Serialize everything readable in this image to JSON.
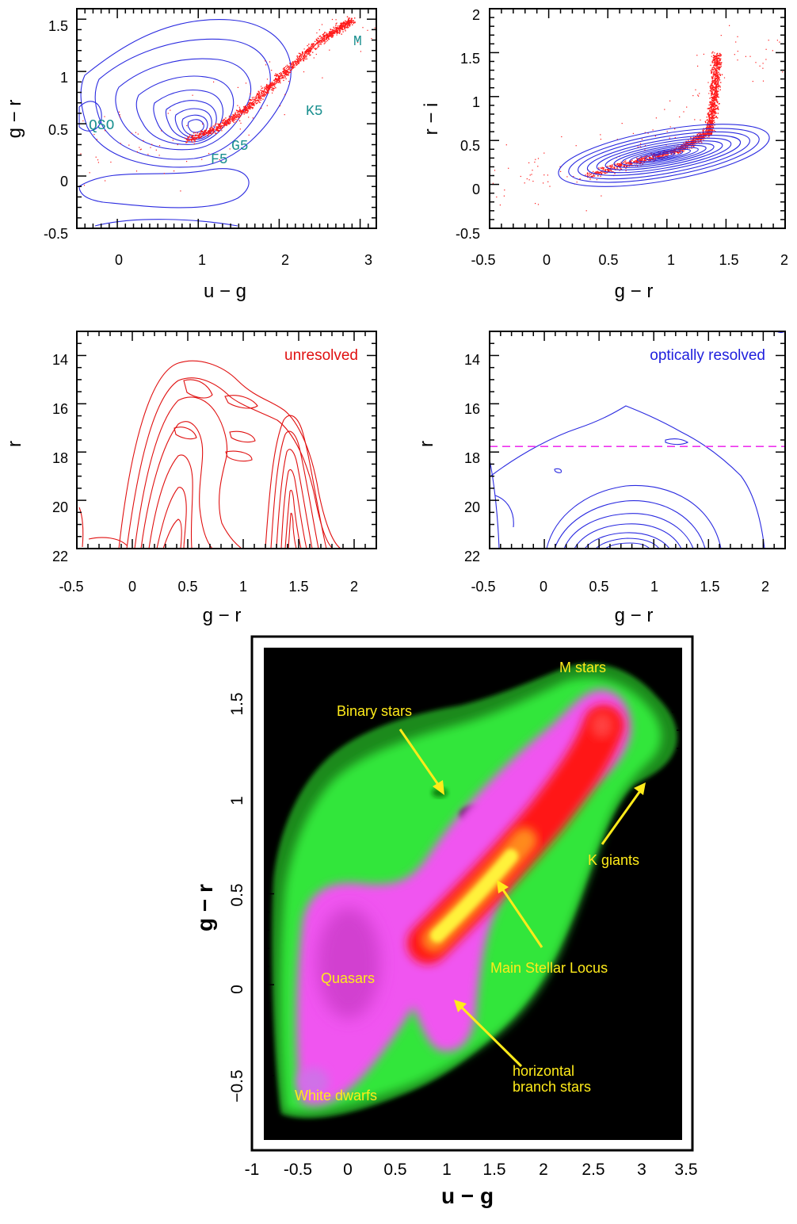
{
  "chart_data": [
    {
      "type": "scatter",
      "panel": "top-left",
      "xlabel": "u − g",
      "ylabel": "g − r",
      "xlim": [
        -0.5,
        3.2
      ],
      "ylim": [
        -0.5,
        1.6
      ],
      "xticks": [
        "0",
        "1",
        "2",
        "3"
      ],
      "yticks": [
        "-0.5",
        "0",
        "0.5",
        "1",
        "1.5"
      ],
      "series": [
        {
          "name": "",
          "kind": "contours",
          "color": "#2a2ae0",
          "center": [
            0.95,
            0.48
          ]
        },
        {
          "name": "",
          "kind": "points",
          "color": "#ff1a1a",
          "locus": [
            [
              0.85,
              0.35
            ],
            [
              1.2,
              0.45
            ],
            [
              1.6,
              0.65
            ],
            [
              2.0,
              0.95
            ],
            [
              2.5,
              1.3
            ],
            [
              2.9,
              1.5
            ]
          ]
        }
      ],
      "labels": [
        {
          "text": "QSO",
          "x": -0.1,
          "y": 0.5
        },
        {
          "text": "F5",
          "x": 1.18,
          "y": 0.2
        },
        {
          "text": "G5",
          "x": 1.5,
          "y": 0.33
        },
        {
          "text": "K5",
          "x": 2.35,
          "y": 0.68
        },
        {
          "text": "M",
          "x": 2.95,
          "y": 1.35
        }
      ]
    },
    {
      "type": "scatter",
      "panel": "top-right",
      "xlabel": "g − r",
      "ylabel": "r − i",
      "xlim": [
        -0.5,
        2.0
      ],
      "ylim": [
        -0.5,
        2.0
      ],
      "xticks": [
        "-0.5",
        "0",
        "0.5",
        "1",
        "1.5",
        "2"
      ],
      "yticks": [
        "-0.5",
        "0",
        "0.5",
        "1",
        "1.5",
        "2"
      ],
      "series": [
        {
          "name": "",
          "kind": "contours",
          "color": "#2a2ae0",
          "center": [
            0.9,
            0.35
          ]
        },
        {
          "name": "",
          "kind": "points",
          "color": "#ff1a1a",
          "locus": [
            [
              0.3,
              0.1
            ],
            [
              0.7,
              0.25
            ],
            [
              1.1,
              0.4
            ],
            [
              1.35,
              0.6
            ],
            [
              1.4,
              1.0
            ],
            [
              1.42,
              1.5
            ]
          ]
        }
      ]
    },
    {
      "type": "line",
      "panel": "middle-left",
      "xlabel": "g − r",
      "ylabel": "r",
      "xlim": [
        -0.5,
        2.2
      ],
      "ylim": [
        22,
        13
      ],
      "xticks": [
        "-0.5",
        "0",
        "0.5",
        "1",
        "1.5",
        "2"
      ],
      "yticks": [
        "14",
        "16",
        "18",
        "20",
        "22"
      ],
      "tag": "unresolved",
      "series": [
        {
          "name": "",
          "kind": "contours",
          "color": "#e01010",
          "peaks": [
            [
              0.4,
              19.0
            ],
            [
              1.4,
              20.5
            ]
          ]
        }
      ]
    },
    {
      "type": "line",
      "panel": "middle-right",
      "xlabel": "g − r",
      "ylabel": "r",
      "xlim": [
        -0.5,
        2.2
      ],
      "ylim": [
        22,
        13
      ],
      "xticks": [
        "-0.5",
        "0",
        "0.5",
        "1",
        "1.5",
        "2"
      ],
      "yticks": [
        "14",
        "16",
        "18",
        "20",
        "22"
      ],
      "tag": "optically resolved",
      "cut_line": 17.77,
      "series": [
        {
          "name": "",
          "kind": "contours",
          "color": "#2a2ae0",
          "peak": [
            1.0,
            21.9
          ]
        }
      ]
    },
    {
      "type": "heatmap",
      "panel": "bottom",
      "xlabel": "u − g",
      "ylabel": "g − r",
      "xlim": [
        -1.0,
        3.5
      ],
      "ylim": [
        -0.85,
        1.85
      ],
      "xticks": [
        "-1",
        "-0.5",
        "0",
        "0.5",
        "1",
        "1.5",
        "2",
        "2.5",
        "3",
        "3.5"
      ],
      "yticks": [
        "−0.5",
        "0",
        "0.5",
        "1",
        "1.5"
      ],
      "annotations": [
        {
          "text": "M stars",
          "x": 2.65,
          "y": 1.68
        },
        {
          "text": "Binary stars",
          "x": 0.45,
          "y": 1.3
        },
        {
          "text": "K giants",
          "x": 2.98,
          "y": 0.64
        },
        {
          "text": "Main Stellar Locus",
          "x": 2.1,
          "y": 0.11
        },
        {
          "text": "Quasars",
          "x": 0.0,
          "y": 0.07
        },
        {
          "text": "horizontal",
          "x": 2.0,
          "y": -0.4
        },
        {
          "text": "branch stars",
          "x": 2.0,
          "y": -0.5
        },
        {
          "text": "White dwarfs",
          "x": 0.15,
          "y": -0.57
        }
      ]
    }
  ]
}
